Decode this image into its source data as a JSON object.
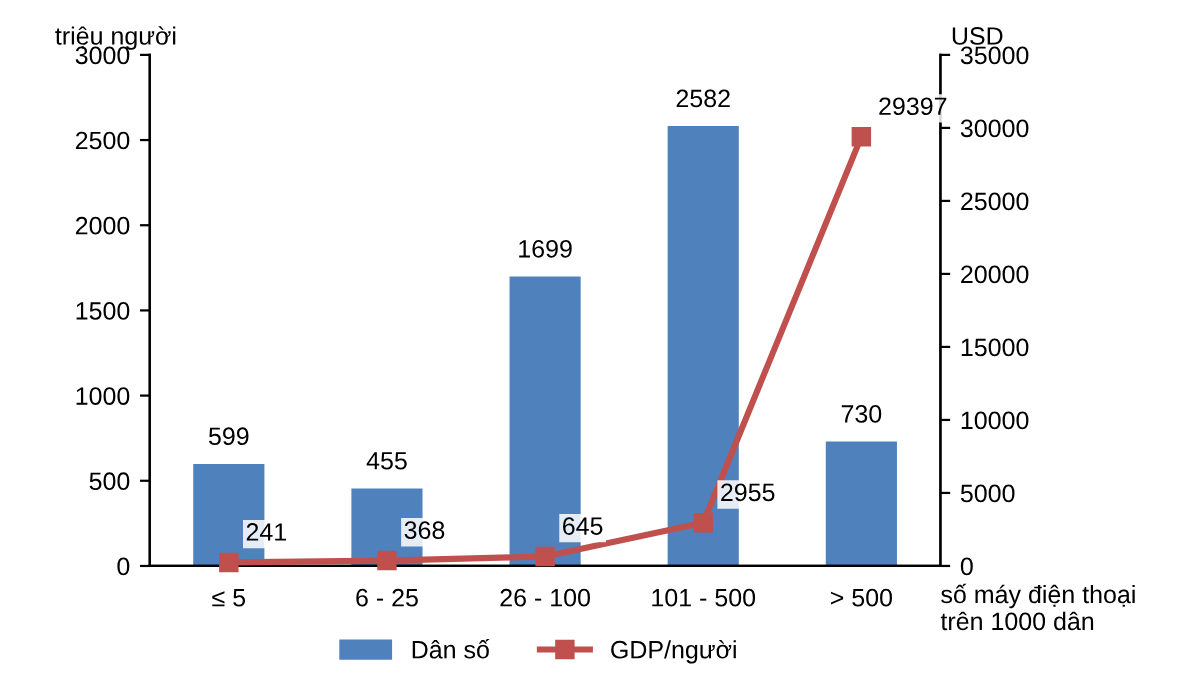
{
  "chart_data": {
    "type": "bar",
    "categories": [
      "≤ 5",
      "6 - 25",
      "26 - 100",
      "101 - 500",
      "> 500"
    ],
    "series": [
      {
        "name": "Dân số",
        "color": "#4f81bd",
        "values": [
          599,
          455,
          1699,
          2582,
          730
        ]
      },
      {
        "name": "GDP/người",
        "type": "line",
        "axis": "y2",
        "color": "#c0504d",
        "marker": "square",
        "values": [
          241,
          368,
          645,
          2955,
          29397
        ]
      }
    ],
    "ylabel": "triệu người",
    "y2label": "USD",
    "xlabel": "số máy điện thoại\ntrên 1000 dân",
    "ylim": [
      0,
      3000
    ],
    "yticks": [
      0,
      500,
      1000,
      1500,
      2000,
      2500,
      3000
    ],
    "y2lim": [
      0,
      35000
    ],
    "y2ticks": [
      0,
      5000,
      10000,
      15000,
      20000,
      25000,
      30000,
      35000
    ],
    "data_labels": true,
    "legend": "bottom",
    "grid": false
  }
}
